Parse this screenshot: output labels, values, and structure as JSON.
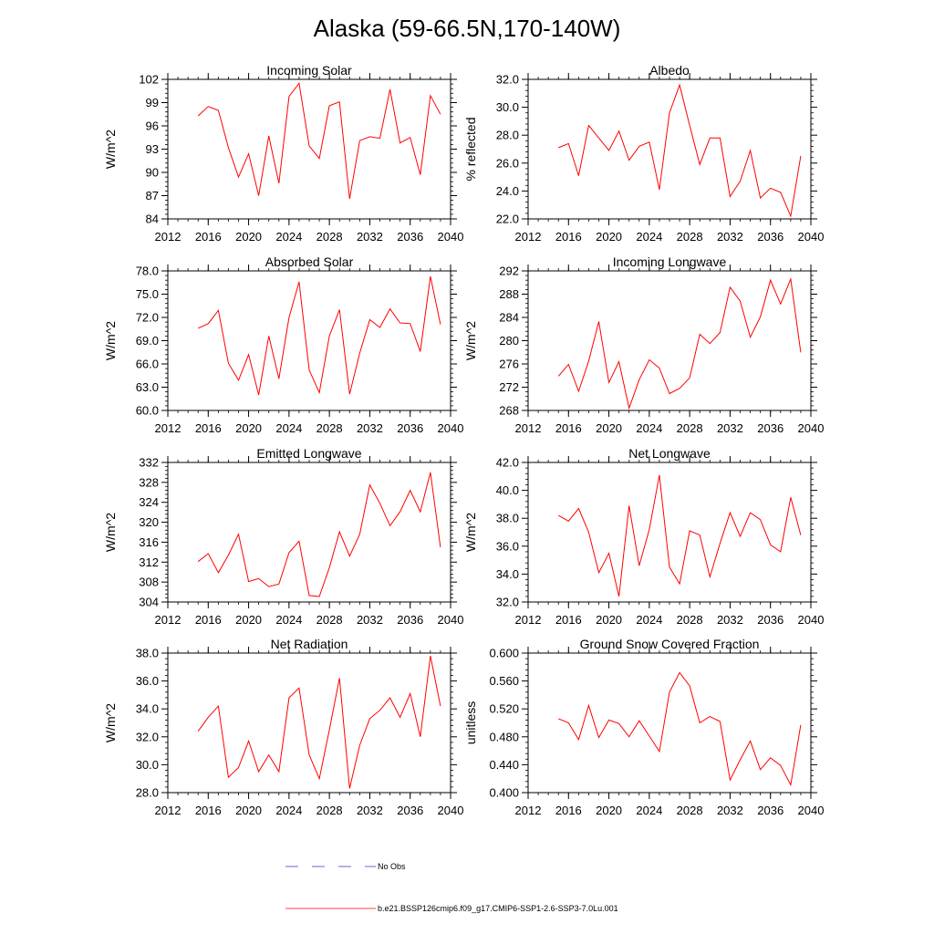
{
  "figure": {
    "title": "Alaska (59-66.5N,170-140W)"
  },
  "legend": {
    "items": [
      {
        "label": "No Obs",
        "color": "#3333cc",
        "style": "dashed"
      },
      {
        "label": "b.e21.BSSP126cmip6.f09_g17.CMIP6-SSP1-2.6-SSP3-7.0Lu.001",
        "color": "#ff0000",
        "style": "solid"
      }
    ]
  },
  "chart_data": [
    {
      "type": "line",
      "title": "Incoming Solar",
      "xlabel": "",
      "ylabel": "W/m^2",
      "xlim": [
        2012,
        2040
      ],
      "ylim": [
        84,
        102
      ],
      "xticks": [
        2012,
        2016,
        2020,
        2024,
        2028,
        2032,
        2036,
        2040
      ],
      "xtick_labels": [
        "2012",
        "2016",
        "2020",
        "2024",
        "2028",
        "2032",
        "2036",
        "2040"
      ],
      "yticks": [
        84,
        87,
        90,
        93,
        96,
        99,
        102
      ],
      "ytick_labels": [
        "84",
        "87",
        "90",
        "93",
        "96",
        "99",
        "102"
      ],
      "x": [
        2015,
        2016,
        2017,
        2018,
        2019,
        2020,
        2021,
        2022,
        2023,
        2024,
        2025,
        2026,
        2027,
        2028,
        2029,
        2030,
        2031,
        2032,
        2033,
        2034,
        2035,
        2036,
        2037,
        2038,
        2039
      ],
      "series": [
        {
          "color": "#ff0000",
          "values": [
            97.3,
            98.5,
            98.0,
            93.2,
            89.4,
            92.4,
            87.0,
            94.7,
            88.6,
            99.8,
            101.5,
            93.4,
            91.8,
            98.6,
            99.1,
            86.6,
            94.1,
            94.6,
            94.4,
            100.7,
            93.8,
            94.5,
            89.7,
            99.9,
            97.5
          ]
        }
      ]
    },
    {
      "type": "line",
      "title": "Albedo",
      "xlabel": "",
      "ylabel": "% reflected",
      "xlim": [
        2012,
        2040
      ],
      "ylim": [
        22.0,
        32.0
      ],
      "xticks": [
        2012,
        2016,
        2020,
        2024,
        2028,
        2032,
        2036,
        2040
      ],
      "xtick_labels": [
        "2012",
        "2016",
        "2020",
        "2024",
        "2028",
        "2032",
        "2036",
        "2040"
      ],
      "yticks": [
        22,
        24,
        26,
        28,
        30,
        32
      ],
      "ytick_labels": [
        "22.0",
        "24.0",
        "26.0",
        "28.0",
        "30.0",
        "32.0"
      ],
      "x": [
        2015,
        2016,
        2017,
        2018,
        2019,
        2020,
        2021,
        2022,
        2023,
        2024,
        2025,
        2026,
        2027,
        2028,
        2029,
        2030,
        2031,
        2032,
        2033,
        2034,
        2035,
        2036,
        2037,
        2038,
        2039
      ],
      "series": [
        {
          "color": "#ff0000",
          "values": [
            27.1,
            27.4,
            25.1,
            28.7,
            27.8,
            26.9,
            28.3,
            26.2,
            27.2,
            27.5,
            24.1,
            29.6,
            31.6,
            28.7,
            25.9,
            27.8,
            27.8,
            23.6,
            24.7,
            26.9,
            23.5,
            24.2,
            23.9,
            22.2,
            26.5
          ]
        }
      ]
    },
    {
      "type": "line",
      "title": "Absorbed Solar",
      "xlabel": "",
      "ylabel": "W/m^2",
      "xlim": [
        2012,
        2040
      ],
      "ylim": [
        60.0,
        78.0
      ],
      "xticks": [
        2012,
        2016,
        2020,
        2024,
        2028,
        2032,
        2036,
        2040
      ],
      "xtick_labels": [
        "2012",
        "2016",
        "2020",
        "2024",
        "2028",
        "2032",
        "2036",
        "2040"
      ],
      "yticks": [
        60,
        63,
        66,
        69,
        72,
        75,
        78
      ],
      "ytick_labels": [
        "60.0",
        "63.0",
        "66.0",
        "69.0",
        "72.0",
        "75.0",
        "78.0"
      ],
      "x": [
        2015,
        2016,
        2017,
        2018,
        2019,
        2020,
        2021,
        2022,
        2023,
        2024,
        2025,
        2026,
        2027,
        2028,
        2029,
        2030,
        2031,
        2032,
        2033,
        2034,
        2035,
        2036,
        2037,
        2038,
        2039
      ],
      "series": [
        {
          "color": "#ff0000",
          "values": [
            70.6,
            71.2,
            72.9,
            66.1,
            63.9,
            67.2,
            62.0,
            69.6,
            64.1,
            72.0,
            76.6,
            65.2,
            62.3,
            69.6,
            73.0,
            62.1,
            67.4,
            71.7,
            70.7,
            73.1,
            71.3,
            71.2,
            67.6,
            77.3,
            71.1
          ]
        }
      ]
    },
    {
      "type": "line",
      "title": "Incoming Longwave",
      "xlabel": "",
      "ylabel": "W/m^2",
      "xlim": [
        2012,
        2040
      ],
      "ylim": [
        268,
        292
      ],
      "xticks": [
        2012,
        2016,
        2020,
        2024,
        2028,
        2032,
        2036,
        2040
      ],
      "xtick_labels": [
        "2012",
        "2016",
        "2020",
        "2024",
        "2028",
        "2032",
        "2036",
        "2040"
      ],
      "yticks": [
        268,
        272,
        276,
        280,
        284,
        288,
        292
      ],
      "ytick_labels": [
        "268",
        "272",
        "276",
        "280",
        "284",
        "288",
        "292"
      ],
      "x": [
        2015,
        2016,
        2017,
        2018,
        2019,
        2020,
        2021,
        2022,
        2023,
        2024,
        2025,
        2026,
        2027,
        2028,
        2029,
        2030,
        2031,
        2032,
        2033,
        2034,
        2035,
        2036,
        2037,
        2038,
        2039
      ],
      "series": [
        {
          "color": "#ff0000",
          "values": [
            273.9,
            275.9,
            271.3,
            276.5,
            283.3,
            272.8,
            276.4,
            268.4,
            273.3,
            276.7,
            275.3,
            270.9,
            271.8,
            273.6,
            281.1,
            279.5,
            281.4,
            289.2,
            286.8,
            280.6,
            284.1,
            290.4,
            286.3,
            290.6,
            278.0
          ]
        }
      ]
    },
    {
      "type": "line",
      "title": "Emitted Longwave",
      "xlabel": "",
      "ylabel": "W/m^2",
      "xlim": [
        2012,
        2040
      ],
      "ylim": [
        304,
        332
      ],
      "xticks": [
        2012,
        2016,
        2020,
        2024,
        2028,
        2032,
        2036,
        2040
      ],
      "xtick_labels": [
        "2012",
        "2016",
        "2020",
        "2024",
        "2028",
        "2032",
        "2036",
        "2040"
      ],
      "yticks": [
        304,
        308,
        312,
        316,
        320,
        324,
        328,
        332
      ],
      "ytick_labels": [
        "304",
        "308",
        "312",
        "316",
        "320",
        "324",
        "328",
        "332"
      ],
      "x": [
        2015,
        2016,
        2017,
        2018,
        2019,
        2020,
        2021,
        2022,
        2023,
        2024,
        2025,
        2026,
        2027,
        2028,
        2029,
        2030,
        2031,
        2032,
        2033,
        2034,
        2035,
        2036,
        2037,
        2038,
        2039
      ],
      "series": [
        {
          "color": "#ff0000",
          "values": [
            312.1,
            313.7,
            309.9,
            313.4,
            317.6,
            308.1,
            308.7,
            307.1,
            307.6,
            313.9,
            316.2,
            305.3,
            305.1,
            310.9,
            318.1,
            313.2,
            317.6,
            327.5,
            323.8,
            319.3,
            322.1,
            326.4,
            322.1,
            330.0,
            315.0
          ]
        }
      ]
    },
    {
      "type": "line",
      "title": "Net Longwave",
      "xlabel": "",
      "ylabel": "W/m^2",
      "xlim": [
        2012,
        2040
      ],
      "ylim": [
        32.0,
        42.0
      ],
      "xticks": [
        2012,
        2016,
        2020,
        2024,
        2028,
        2032,
        2036,
        2040
      ],
      "xtick_labels": [
        "2012",
        "2016",
        "2020",
        "2024",
        "2028",
        "2032",
        "2036",
        "2040"
      ],
      "yticks": [
        32,
        34,
        36,
        38,
        40,
        42
      ],
      "ytick_labels": [
        "32.0",
        "34.0",
        "36.0",
        "38.0",
        "40.0",
        "42.0"
      ],
      "x": [
        2015,
        2016,
        2017,
        2018,
        2019,
        2020,
        2021,
        2022,
        2023,
        2024,
        2025,
        2026,
        2027,
        2028,
        2029,
        2030,
        2031,
        2032,
        2033,
        2034,
        2035,
        2036,
        2037,
        2038,
        2039
      ],
      "series": [
        {
          "color": "#ff0000",
          "values": [
            38.2,
            37.8,
            38.7,
            37.0,
            34.1,
            35.5,
            32.4,
            38.9,
            34.6,
            37.2,
            41.1,
            34.5,
            33.3,
            37.1,
            36.8,
            33.8,
            36.2,
            38.4,
            36.7,
            38.4,
            37.9,
            36.1,
            35.6,
            39.5,
            36.8
          ]
        }
      ]
    },
    {
      "type": "line",
      "title": "Net Radiation",
      "xlabel": "",
      "ylabel": "W/m^2",
      "xlim": [
        2012,
        2040
      ],
      "ylim": [
        28.0,
        38.0
      ],
      "xticks": [
        2012,
        2016,
        2020,
        2024,
        2028,
        2032,
        2036,
        2040
      ],
      "xtick_labels": [
        "2012",
        "2016",
        "2020",
        "2024",
        "2028",
        "2032",
        "2036",
        "2040"
      ],
      "yticks": [
        28,
        30,
        32,
        34,
        36,
        38
      ],
      "ytick_labels": [
        "28.0",
        "30.0",
        "32.0",
        "34.0",
        "36.0",
        "38.0"
      ],
      "x": [
        2015,
        2016,
        2017,
        2018,
        2019,
        2020,
        2021,
        2022,
        2023,
        2024,
        2025,
        2026,
        2027,
        2028,
        2029,
        2030,
        2031,
        2032,
        2033,
        2034,
        2035,
        2036,
        2037,
        2038,
        2039
      ],
      "series": [
        {
          "color": "#ff0000",
          "values": [
            32.4,
            33.4,
            34.2,
            29.1,
            29.8,
            31.7,
            29.5,
            30.7,
            29.5,
            34.8,
            35.5,
            30.7,
            29.0,
            32.5,
            36.2,
            28.3,
            31.4,
            33.3,
            33.9,
            34.8,
            33.4,
            35.1,
            32.0,
            37.8,
            34.2
          ]
        }
      ]
    },
    {
      "type": "line",
      "title": "Ground Snow Covered Fraction",
      "xlabel": "",
      "ylabel": "unitless",
      "xlim": [
        2012,
        2040
      ],
      "ylim": [
        0.4,
        0.6
      ],
      "xticks": [
        2012,
        2016,
        2020,
        2024,
        2028,
        2032,
        2036,
        2040
      ],
      "xtick_labels": [
        "2012",
        "2016",
        "2020",
        "2024",
        "2028",
        "2032",
        "2036",
        "2040"
      ],
      "yticks": [
        0.4,
        0.44,
        0.48,
        0.52,
        0.56,
        0.6
      ],
      "ytick_labels": [
        "0.400",
        "0.440",
        "0.480",
        "0.520",
        "0.560",
        "0.600"
      ],
      "x": [
        2015,
        2016,
        2017,
        2018,
        2019,
        2020,
        2021,
        2022,
        2023,
        2024,
        2025,
        2026,
        2027,
        2028,
        2029,
        2030,
        2031,
        2032,
        2033,
        2034,
        2035,
        2036,
        2037,
        2038,
        2039
      ],
      "series": [
        {
          "color": "#ff0000",
          "values": [
            0.506,
            0.5,
            0.476,
            0.525,
            0.479,
            0.504,
            0.499,
            0.48,
            0.503,
            0.481,
            0.459,
            0.544,
            0.572,
            0.553,
            0.5,
            0.509,
            0.502,
            0.418,
            0.447,
            0.474,
            0.433,
            0.45,
            0.439,
            0.411,
            0.497
          ]
        }
      ]
    }
  ]
}
